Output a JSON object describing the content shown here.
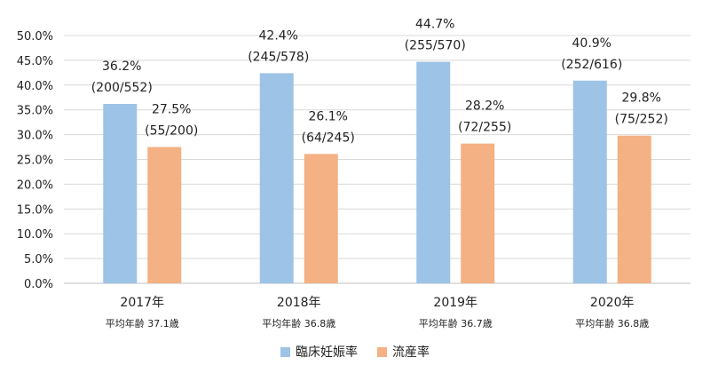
{
  "chart_data": {
    "type": "bar",
    "categories": [
      "2017年",
      "2018年",
      "2019年",
      "2020年"
    ],
    "subcategories": [
      "平均年齢 37.1歳",
      "平均年齢 36.8歳",
      "平均年齢 36.7歳",
      "平均年齢 36.8歳"
    ],
    "ylim": [
      0,
      50
    ],
    "yticks": [
      "0.0%",
      "5.0%",
      "10.0%",
      "15.0%",
      "20.0%",
      "25.0%",
      "30.0%",
      "35.0%",
      "40.0%",
      "45.0%",
      "50.0%"
    ],
    "grid": true,
    "legend": "bottom",
    "series": [
      {
        "name": "臨床妊娠率",
        "color": "#9dc3e6",
        "values": [
          36.2,
          42.4,
          44.7,
          40.9
        ],
        "labels": [
          "36.2%",
          "42.4%",
          "44.7%",
          "40.9%"
        ],
        "sublabels": [
          "(200/552)",
          "(245/578)",
          "(255/570)",
          "(252/616)"
        ]
      },
      {
        "name": "流産率",
        "color": "#f4b183",
        "values": [
          27.5,
          26.1,
          28.2,
          29.8
        ],
        "labels": [
          "27.5%",
          "26.1%",
          "28.2%",
          "29.8%"
        ],
        "sublabels": [
          "(55/200)",
          "(64/245)",
          "(72/255)",
          "(75/252)"
        ]
      }
    ]
  }
}
